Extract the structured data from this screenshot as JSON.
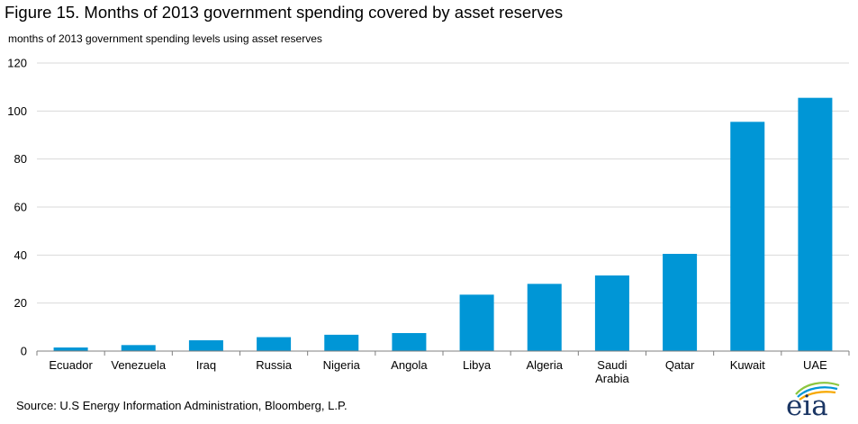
{
  "title": "Figure 15. Months of 2013 government spending covered by asset reserves",
  "source": "Source: U.S Energy Information Administration, Bloomberg, L.P.",
  "logo_text": "eia",
  "colors": {
    "bar": "#0096d6",
    "grid": "#d9d9d9",
    "axis": "#7f7f7f"
  },
  "chart_data": {
    "type": "bar",
    "title": "Figure 15. Months of 2013 government spending covered by asset reserves",
    "ylabel": "months of 2013 government  spending levels using asset reserves",
    "xlabel": "",
    "ylim": [
      0,
      120
    ],
    "yticks": [
      0,
      20,
      40,
      60,
      80,
      100,
      120
    ],
    "grid": true,
    "categories": [
      "Ecuador",
      "Venezuela",
      "Iraq",
      "Russia",
      "Nigeria",
      "Angola",
      "Libya",
      "Algeria",
      "Saudi Arabia",
      "Qatar",
      "Kuwait",
      "UAE"
    ],
    "category_lines": [
      [
        "Ecuador"
      ],
      [
        "Venezuela"
      ],
      [
        "Iraq"
      ],
      [
        "Russia"
      ],
      [
        "Nigeria"
      ],
      [
        "Angola"
      ],
      [
        "Libya"
      ],
      [
        "Algeria"
      ],
      [
        "Saudi",
        "Arabia"
      ],
      [
        "Qatar"
      ],
      [
        "Kuwait"
      ],
      [
        "UAE"
      ]
    ],
    "values": [
      1.5,
      2.5,
      4.5,
      5.8,
      6.8,
      7.5,
      23.5,
      28,
      31.5,
      40.5,
      95.5,
      105.5
    ]
  }
}
